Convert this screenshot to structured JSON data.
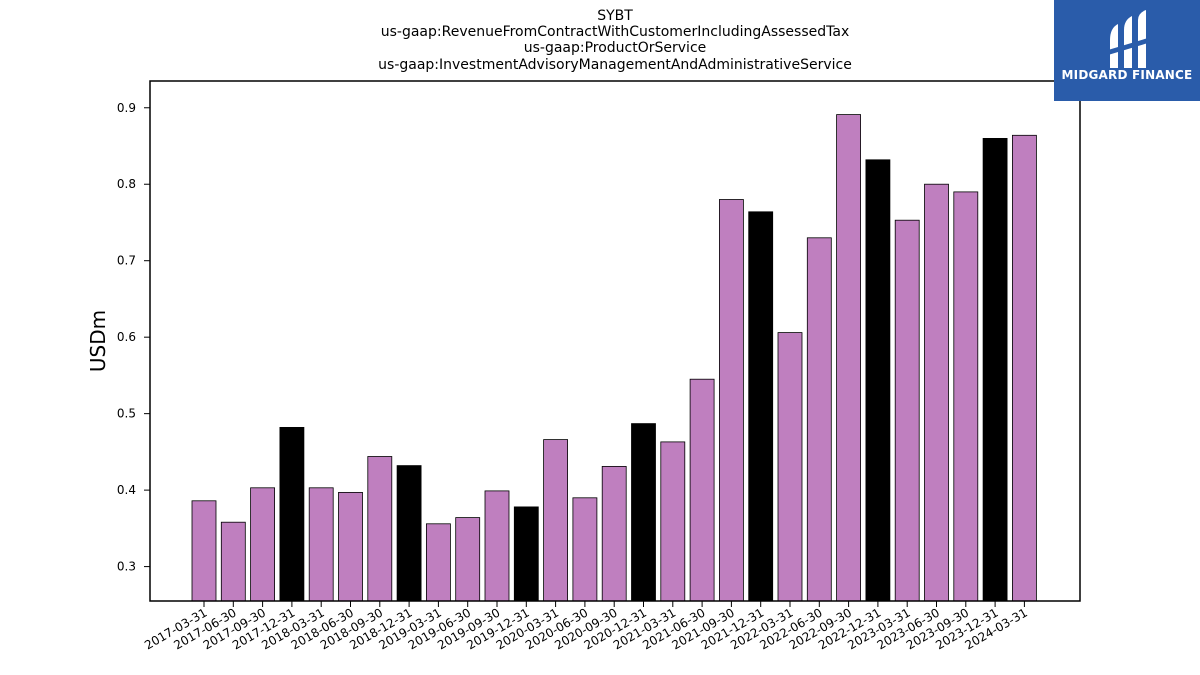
{
  "chart_data": {
    "type": "bar",
    "title_lines": [
      "SYBT",
      "us-gaap:RevenueFromContractWithCustomerIncludingAssessedTax",
      "us-gaap:ProductOrService",
      "us-gaap:InvestmentAdvisoryManagementAndAdministrativeService"
    ],
    "xlabel": "",
    "ylabel": "USDm",
    "ylim": [
      0.255,
      0.935
    ],
    "yticks": [
      0.3,
      0.4,
      0.5,
      0.6,
      0.7,
      0.8,
      0.9
    ],
    "ytick_labels": [
      "0.3",
      "0.4",
      "0.5",
      "0.6",
      "0.7",
      "0.8",
      "0.9"
    ],
    "grid": false,
    "colors": {
      "quarter": "#bf7fbf",
      "year_end": "#000000",
      "edge": "#000000"
    },
    "categories": [
      "2017-03-31",
      "2017-06-30",
      "2017-09-30",
      "2017-12-31",
      "2018-03-31",
      "2018-06-30",
      "2018-09-30",
      "2018-12-31",
      "2019-03-31",
      "2019-06-30",
      "2019-09-30",
      "2019-12-31",
      "2020-03-31",
      "2020-06-30",
      "2020-09-30",
      "2020-12-31",
      "2021-03-31",
      "2021-06-30",
      "2021-09-30",
      "2021-12-31",
      "2022-03-31",
      "2022-06-30",
      "2022-09-30",
      "2022-12-31",
      "2023-03-31",
      "2023-06-30",
      "2023-09-30",
      "2023-12-31",
      "2024-03-31"
    ],
    "values": [
      0.386,
      0.358,
      0.403,
      0.482,
      0.403,
      0.397,
      0.444,
      0.432,
      0.356,
      0.364,
      0.399,
      0.378,
      0.466,
      0.39,
      0.431,
      0.487,
      0.463,
      0.545,
      0.78,
      0.764,
      0.606,
      0.73,
      0.891,
      0.832,
      0.753,
      0.8,
      0.79,
      0.86,
      0.864
    ]
  },
  "logo": {
    "text": "MIDGARD FINANCE",
    "icon": "midgard-logo-icon"
  }
}
